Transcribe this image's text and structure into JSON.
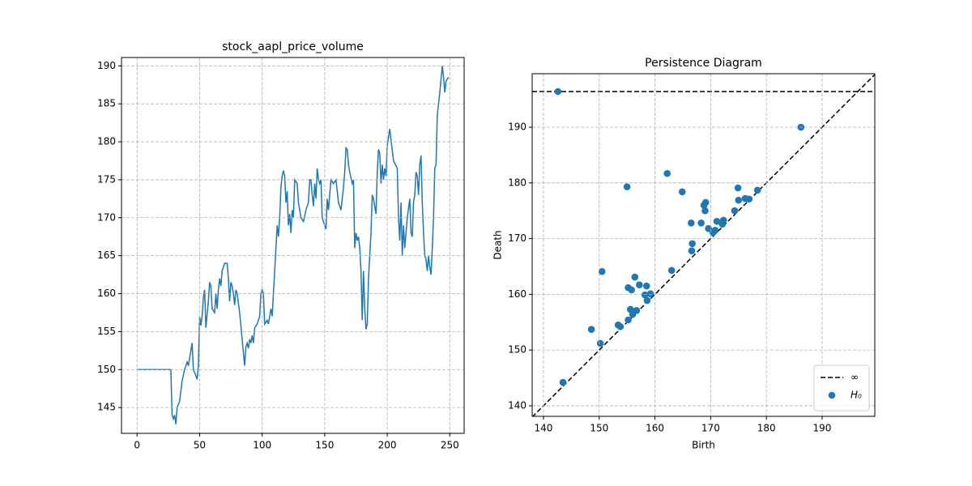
{
  "chart_data": [
    {
      "type": "line",
      "title": "stock_aapl_price_volume",
      "color": "#1f77b4",
      "x": [
        0,
        27,
        28,
        29,
        30,
        31,
        32,
        34,
        36,
        38,
        40,
        41,
        43,
        44,
        45,
        47,
        48,
        49,
        50,
        51,
        52,
        53,
        54,
        55,
        57,
        58,
        59,
        60,
        62,
        63,
        64,
        65,
        66,
        67,
        68,
        70,
        72,
        73,
        74,
        75,
        76,
        77,
        78,
        79,
        80,
        82,
        84,
        86,
        87,
        88,
        89,
        90,
        91,
        92,
        93,
        94,
        96,
        98,
        99,
        100,
        101,
        102,
        104,
        105,
        107,
        108,
        110,
        111,
        112,
        113,
        114,
        115,
        116,
        117,
        118,
        119,
        120,
        121,
        122,
        123,
        124,
        125,
        126,
        128,
        129,
        130,
        131,
        133,
        135,
        137,
        138,
        139,
        140,
        141,
        142,
        143,
        144,
        145,
        146,
        147,
        148,
        150,
        151,
        152,
        153,
        155,
        157,
        159,
        161,
        163,
        165,
        166,
        167,
        168,
        169,
        170,
        172,
        173,
        174,
        175,
        176,
        177,
        178,
        179,
        180,
        181,
        182,
        183,
        184,
        185,
        186,
        187,
        188,
        189,
        190,
        191,
        192,
        193,
        194,
        195,
        196,
        197,
        198,
        199,
        200,
        202,
        205,
        208,
        209,
        210,
        211,
        212,
        213,
        214,
        216,
        218,
        219,
        220,
        221,
        222,
        223,
        224,
        225,
        226,
        227,
        228,
        229,
        230,
        231,
        232,
        233,
        234,
        235,
        236,
        237,
        238,
        239,
        240,
        241,
        242,
        244,
        245,
        246,
        247,
        249
      ],
      "values": [
        150,
        150,
        144,
        143.5,
        144,
        142.8,
        145,
        145.8,
        148.5,
        150,
        151,
        150.5,
        152.5,
        153.5,
        150,
        149.2,
        148.7,
        150.5,
        157,
        155.8,
        157,
        159.5,
        160.5,
        155.5,
        159,
        161.5,
        161,
        158,
        157.5,
        160,
        158,
        160.5,
        162,
        161,
        163,
        164,
        164,
        162,
        159,
        161.5,
        161,
        160,
        158.5,
        160.5,
        160,
        157.5,
        154,
        150.5,
        153,
        153.5,
        152.8,
        154,
        153.5,
        154.5,
        153.5,
        155.5,
        156,
        157,
        160,
        160.5,
        160,
        156,
        156.5,
        156,
        158,
        157,
        163,
        166,
        169,
        167.5,
        170,
        174,
        175.5,
        176.2,
        175.5,
        172,
        173.5,
        169,
        170.5,
        168,
        171,
        170,
        175,
        174.5,
        172,
        171,
        170,
        169.5,
        171,
        172,
        175,
        175,
        173,
        171.5,
        174.5,
        172.5,
        176.5,
        175,
        174.5,
        175,
        170,
        169,
        168.5,
        172.5,
        171,
        175,
        174.5,
        175,
        172,
        171,
        174,
        176,
        179.2,
        179,
        177,
        176,
        174.5,
        175,
        166,
        168,
        167,
        167.5,
        166,
        163,
        156.5,
        163,
        158,
        155.3,
        156,
        162,
        165,
        168,
        173,
        172.5,
        171.5,
        170.5,
        176,
        179,
        178.5,
        174.5,
        177,
        175,
        176.5,
        175.5,
        179.5,
        181.7,
        177.5,
        176.5,
        170,
        167,
        172,
        165,
        169,
        166,
        170,
        172.5,
        168,
        167.5,
        172,
        173,
        176,
        175.5,
        173,
        177,
        178.2,
        172,
        168,
        165,
        164.5,
        163,
        165,
        163.5,
        162.5,
        166,
        170,
        176.5,
        177,
        183.5,
        185,
        186.5,
        190,
        188.5,
        186.5,
        188,
        188.5
      ],
      "xlim": [
        -12.45,
        261.45
      ],
      "ylim": [
        141.6,
        191.1
      ],
      "xticks": [
        0,
        50,
        100,
        150,
        200,
        250
      ],
      "yticks": [
        145,
        150,
        155,
        160,
        165,
        170,
        175,
        180,
        185,
        190
      ],
      "grid": true
    },
    {
      "type": "scatter",
      "title": "Persistence Diagram",
      "xlabel": "Birth",
      "ylabel": "Death",
      "infinity": {
        "name": "∞",
        "value": 196.4,
        "color": "#000000"
      },
      "series": [
        {
          "name": "H₀",
          "color": "#1f77b4",
          "x": [
            142.6,
            186.2,
            162.2,
            155.0,
            164.9,
            174.9,
            178.4,
            169.1,
            168.8,
            175.0,
            176.2,
            176.9,
            169.0,
            174.3,
            166.5,
            168.3,
            171.1,
            172.3,
            169.6,
            170.4,
            170.8,
            172.1,
            166.7,
            166.6,
            163.0,
            150.5,
            156.4,
            155.2,
            157.2,
            158.5,
            155.8,
            158.2,
            159.2,
            158.6,
            155.6,
            156.7,
            156.0,
            155.2,
            148.6,
            153.4,
            153.8,
            150.2,
            143.5
          ],
          "values": [
            196.4,
            190.0,
            181.7,
            179.3,
            178.4,
            179.1,
            178.7,
            176.5,
            176.0,
            176.9,
            177.2,
            177.1,
            175.0,
            175.0,
            172.8,
            172.8,
            173.1,
            173.3,
            171.8,
            171.1,
            171.5,
            172.6,
            169.1,
            167.8,
            164.3,
            164.1,
            163.1,
            161.2,
            161.7,
            161.5,
            160.8,
            159.9,
            160.1,
            158.9,
            157.3,
            157.1,
            156.4,
            155.4,
            153.7,
            154.5,
            154.2,
            151.2,
            144.2
          ]
        }
      ],
      "xlim": [
        137.97,
        199.45
      ],
      "ylim": [
        138.1,
        199.6
      ],
      "xticks": [
        140,
        150,
        160,
        170,
        180,
        190
      ],
      "yticks": [
        140,
        150,
        160,
        170,
        180,
        190
      ],
      "grid": true,
      "legend": "lower right"
    }
  ]
}
